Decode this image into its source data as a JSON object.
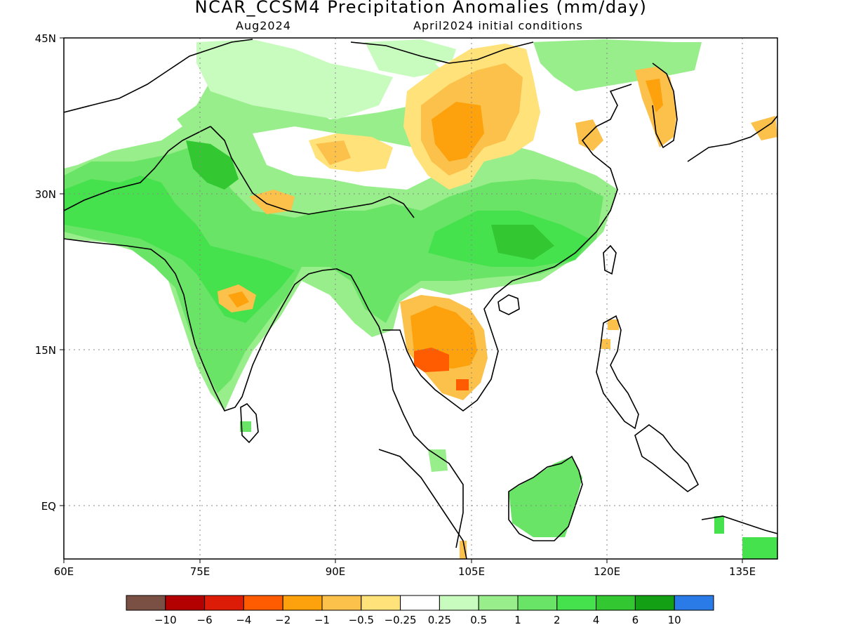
{
  "header": {
    "title": "NCAR_CCSM4 Precipitation Anomalies (mm/day)",
    "valid_month": "Aug2024",
    "init": "April2024 initial conditions"
  },
  "axes": {
    "lat_labels": [
      "45N",
      "30N",
      "15N",
      "EQ"
    ],
    "lon_labels": [
      "60E",
      "75E",
      "90E",
      "105E",
      "120E",
      "135E"
    ]
  },
  "colorbar": {
    "colors": [
      "#7a5045",
      "#b30000",
      "#dd1c07",
      "#ff5b00",
      "#fda10c",
      "#fbc14b",
      "#ffe27a",
      "#ffffff",
      "#c8fbbe",
      "#98ee8a",
      "#6ae467",
      "#45e24d",
      "#33c832",
      "#14a014",
      "#2a7be8"
    ],
    "labels": [
      "-10",
      "-6",
      "-4",
      "-2",
      "-1",
      "-0.5",
      "-0.25",
      "0.25",
      "0.5",
      "1",
      "2",
      "4",
      "6",
      "10"
    ]
  }
}
